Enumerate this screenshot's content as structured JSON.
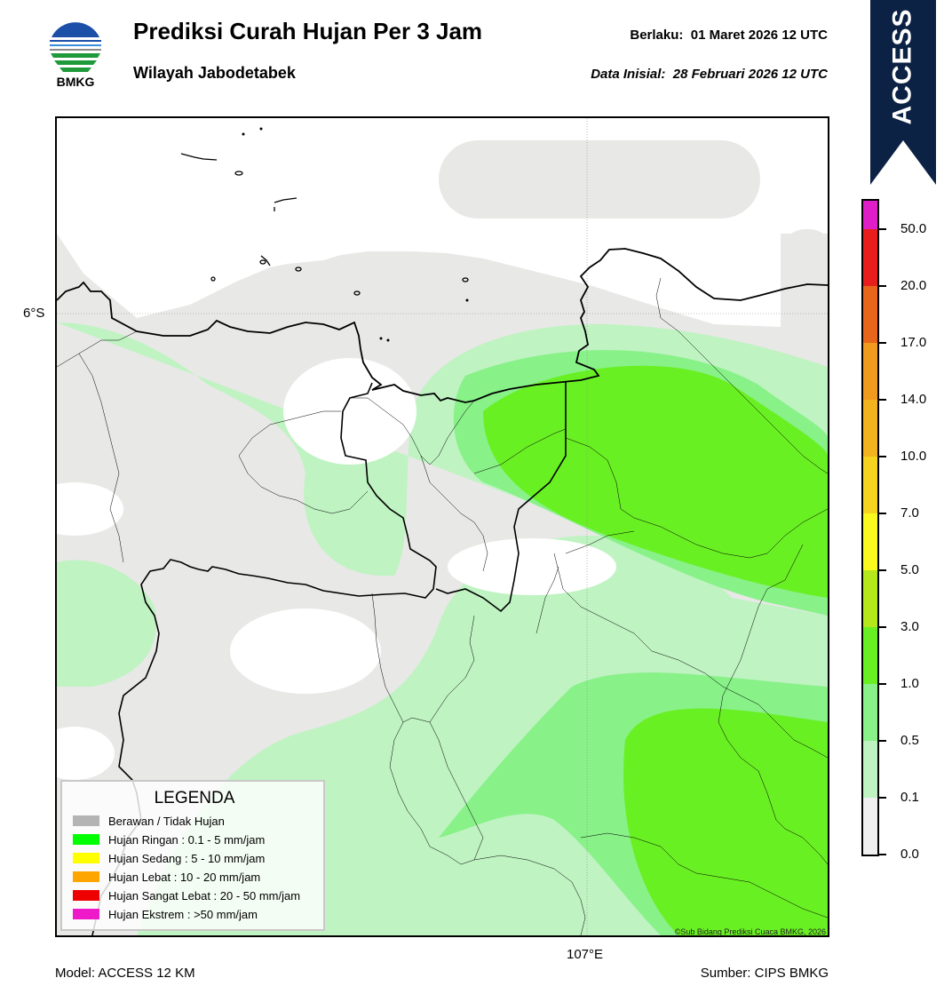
{
  "header": {
    "title": "Prediksi Curah Hujan Per 3 Jam",
    "subtitle": "Wilayah Jabodetabek",
    "valid_label": "Berlaku:",
    "valid_value": "01 Maret 2026 12 UTC",
    "init_label": "Data Inisial:",
    "init_value": "28 Februari 2026 12 UTC"
  },
  "logo": {
    "text": "BMKG",
    "icon": "bmkg-logo"
  },
  "ribbon": {
    "text": "ACCESS",
    "color": "#0c2244"
  },
  "map": {
    "lat_label": "6°S",
    "lon_label": "107°E",
    "copyright": "©Sub Bidang Prediksi Cuaca BMKG, 2026",
    "colors": {
      "cloudy": "#e8e8e6",
      "light": "#bff3c2",
      "light2": "#88f188",
      "medium": "#69f023",
      "coast": "#000000"
    }
  },
  "colorbar": {
    "labels": [
      "0.0",
      "0.1",
      "0.5",
      "1.0",
      "3.0",
      "5.0",
      "7.0",
      "10.0",
      "14.0",
      "17.0",
      "20.0",
      "50.0"
    ],
    "colors": [
      "#f0f0f0",
      "#bff3c2",
      "#88f188",
      "#69f023",
      "#b4e81a",
      "#fafa1e",
      "#f5d31e",
      "#f2b31e",
      "#f09a1e",
      "#e8661c",
      "#e81e1e",
      "#e01ec8"
    ]
  },
  "legend": {
    "title": "LEGENDA",
    "items": [
      {
        "label": "Berawan / Tidak Hujan",
        "color": "#b4b4b4"
      },
      {
        "label": "Hujan Ringan : 0.1 - 5 mm/jam",
        "color": "#00ff00"
      },
      {
        "label": "Hujan Sedang : 5 - 10 mm/jam",
        "color": "#ffff00"
      },
      {
        "label": "Hujan Lebat : 10 - 20 mm/jam",
        "color": "#ffa500"
      },
      {
        "label": "Hujan Sangat Lebat : 20 - 50 mm/jam",
        "color": "#ee0000"
      },
      {
        "label": "Hujan Ekstrem : >50 mm/jam",
        "color": "#ee19c8"
      }
    ]
  },
  "footer": {
    "model": "Model: ACCESS 12 KM",
    "source": "Sumber: CIPS BMKG"
  }
}
